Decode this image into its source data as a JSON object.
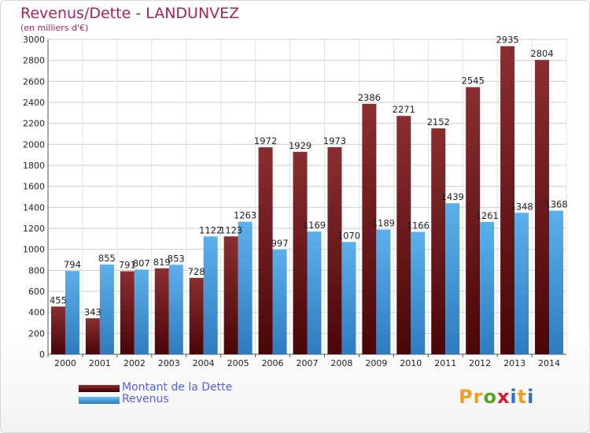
{
  "title": "Revenus/Dette - LANDUNVEZ",
  "subtitle": "(en milliers d'€)",
  "logo": {
    "text": "Proxiti",
    "letters": [
      "P",
      "r",
      "o",
      "x",
      "i",
      "t",
      "i"
    ],
    "colors": [
      "#f0a020",
      "#f0a020",
      "#5aa02a",
      "#d02030",
      "#3070c0",
      "#f0a020",
      "#3070c0"
    ]
  },
  "colors": {
    "debt_bar": "#7a1e22",
    "revenue_bar": "#4a9ed8",
    "title": "#a5245f",
    "legend_text": "#5060ee"
  },
  "chart_data": {
    "type": "bar",
    "categories": [
      "2000",
      "2001",
      "2002",
      "2003",
      "2004",
      "2005",
      "2006",
      "2007",
      "2008",
      "2009",
      "2010",
      "2011",
      "2012",
      "2013",
      "2014"
    ],
    "series": [
      {
        "name": "Montant de la Dette",
        "color": "#7a1e22",
        "values": [
          455,
          343,
          791,
          819,
          728,
          1123,
          1972,
          1929,
          1973,
          2386,
          2271,
          2152,
          2545,
          2935,
          2804
        ]
      },
      {
        "name": "Revenus",
        "color": "#4a9ed8",
        "values": [
          794,
          855,
          807,
          853,
          1122,
          1263,
          997,
          1169,
          1070,
          1189,
          1166,
          1439,
          1261,
          1348,
          1368
        ]
      }
    ],
    "yticks": [
      0,
      200,
      400,
      600,
      800,
      1000,
      1200,
      1400,
      1600,
      1800,
      2000,
      2200,
      2400,
      2600,
      2800,
      3000
    ],
    "ylim": [
      0,
      3000
    ],
    "grid": true,
    "legend_position": "bottom-left"
  }
}
